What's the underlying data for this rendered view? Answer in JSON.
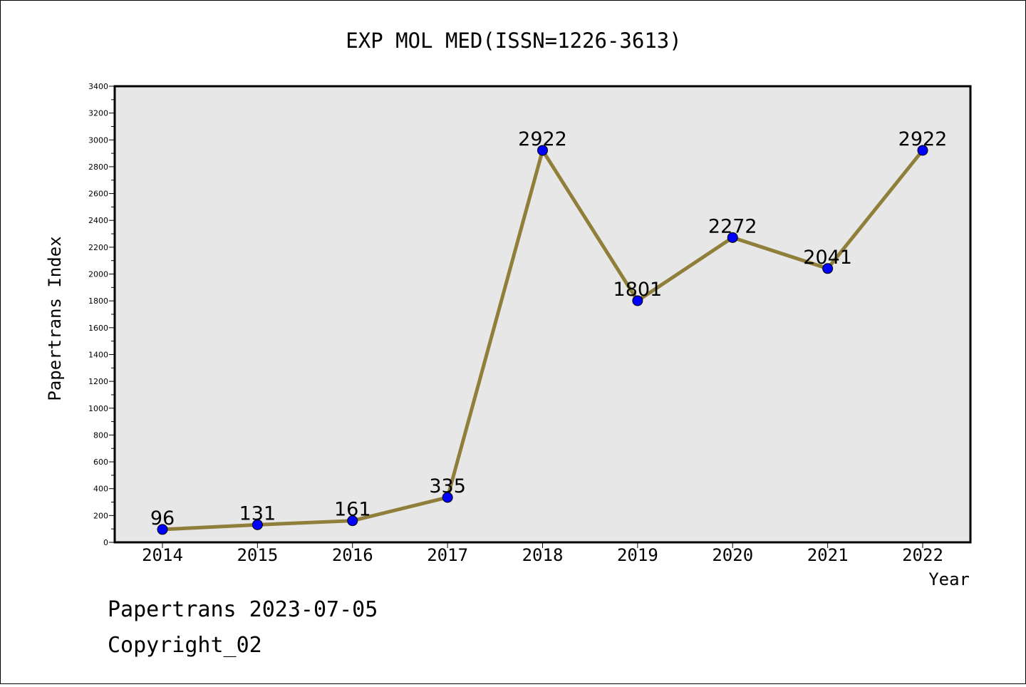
{
  "chart_data": {
    "type": "line",
    "title": "EXP MOL MED(ISSN=1226-3613)",
    "xlabel": "Year",
    "ylabel": "Papertrans Index",
    "categories": [
      "2014",
      "2015",
      "2016",
      "2017",
      "2018",
      "2019",
      "2020",
      "2021",
      "2022"
    ],
    "series": [
      {
        "values": [
          96,
          131,
          161,
          335,
          2922,
          1801,
          2272,
          2041,
          2922
        ]
      }
    ],
    "ylim": [
      0,
      3400
    ],
    "yticks": [
      "0",
      "200",
      "400",
      "600",
      "800",
      "1000",
      "1200",
      "1400",
      "1600",
      "1800",
      "2000",
      "2200",
      "2400",
      "2600",
      "2800",
      "3000",
      "3200",
      "3400"
    ],
    "grid": false,
    "legend": "none",
    "colors": {
      "line": "#8f7f3a",
      "marker": "#0000ff",
      "plot_background": "#e7e7e7"
    }
  },
  "footer": {
    "line1": "Papertrans 2023-07-05",
    "line2": "Copyright_02"
  }
}
